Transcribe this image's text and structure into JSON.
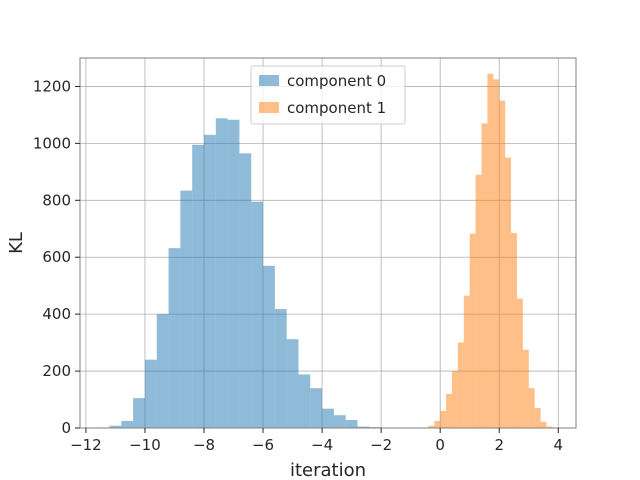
{
  "chart_data": {
    "type": "histogram",
    "xlabel": "iteration",
    "ylabel": "KL",
    "xlim": [
      -12.2,
      4.6
    ],
    "ylim": [
      0,
      1300
    ],
    "xticks": [
      -12,
      -10,
      -8,
      -6,
      -4,
      -2,
      0,
      2,
      4
    ],
    "xtick_labels": [
      "−12",
      "−10",
      "−8",
      "−6",
      "−4",
      "−2",
      "0",
      "2",
      "4"
    ],
    "yticks": [
      0,
      200,
      400,
      600,
      800,
      1000,
      1200
    ],
    "ytick_labels": [
      "0",
      "200",
      "400",
      "600",
      "800",
      "1000",
      "1200"
    ],
    "grid": true,
    "legend_position": "top-center",
    "series": [
      {
        "name": "component 0",
        "color": "#1f77b4",
        "alpha": 0.5,
        "bins": [
          {
            "x0": -11.6,
            "x1": -11.2,
            "count": 2
          },
          {
            "x0": -11.2,
            "x1": -10.8,
            "count": 8
          },
          {
            "x0": -10.8,
            "x1": -10.4,
            "count": 25
          },
          {
            "x0": -10.4,
            "x1": -10.0,
            "count": 105
          },
          {
            "x0": -10.0,
            "x1": -9.6,
            "count": 240
          },
          {
            "x0": -9.6,
            "x1": -9.2,
            "count": 400
          },
          {
            "x0": -9.2,
            "x1": -8.8,
            "count": 632
          },
          {
            "x0": -8.8,
            "x1": -8.4,
            "count": 834
          },
          {
            "x0": -8.4,
            "x1": -8.0,
            "count": 995
          },
          {
            "x0": -8.0,
            "x1": -7.6,
            "count": 1030
          },
          {
            "x0": -7.6,
            "x1": -7.2,
            "count": 1088
          },
          {
            "x0": -7.2,
            "x1": -6.8,
            "count": 1083
          },
          {
            "x0": -6.8,
            "x1": -6.4,
            "count": 965
          },
          {
            "x0": -6.4,
            "x1": -6.0,
            "count": 795
          },
          {
            "x0": -6.0,
            "x1": -5.6,
            "count": 570
          },
          {
            "x0": -5.6,
            "x1": -5.2,
            "count": 418
          },
          {
            "x0": -5.2,
            "x1": -4.8,
            "count": 312
          },
          {
            "x0": -4.8,
            "x1": -4.4,
            "count": 188
          },
          {
            "x0": -4.4,
            "x1": -4.0,
            "count": 140
          },
          {
            "x0": -4.0,
            "x1": -3.6,
            "count": 68
          },
          {
            "x0": -3.6,
            "x1": -3.2,
            "count": 45
          },
          {
            "x0": -3.2,
            "x1": -2.8,
            "count": 28
          },
          {
            "x0": -2.8,
            "x1": -2.4,
            "count": 5
          },
          {
            "x0": -2.4,
            "x1": -2.0,
            "count": 3
          },
          {
            "x0": -2.0,
            "x1": -1.6,
            "count": 1
          }
        ]
      },
      {
        "name": "component 1",
        "color": "#ff7f0e",
        "alpha": 0.5,
        "bins": [
          {
            "x0": -0.4,
            "x1": -0.2,
            "count": 8
          },
          {
            "x0": -0.2,
            "x1": 0.0,
            "count": 25
          },
          {
            "x0": 0.0,
            "x1": 0.2,
            "count": 60
          },
          {
            "x0": 0.2,
            "x1": 0.4,
            "count": 120
          },
          {
            "x0": 0.4,
            "x1": 0.6,
            "count": 200
          },
          {
            "x0": 0.6,
            "x1": 0.8,
            "count": 300
          },
          {
            "x0": 0.8,
            "x1": 1.0,
            "count": 465
          },
          {
            "x0": 1.0,
            "x1": 1.2,
            "count": 683
          },
          {
            "x0": 1.2,
            "x1": 1.4,
            "count": 890
          },
          {
            "x0": 1.4,
            "x1": 1.6,
            "count": 1070
          },
          {
            "x0": 1.6,
            "x1": 1.8,
            "count": 1245
          },
          {
            "x0": 1.8,
            "x1": 2.0,
            "count": 1225
          },
          {
            "x0": 2.0,
            "x1": 2.2,
            "count": 1150
          },
          {
            "x0": 2.2,
            "x1": 2.4,
            "count": 950
          },
          {
            "x0": 2.4,
            "x1": 2.6,
            "count": 685
          },
          {
            "x0": 2.6,
            "x1": 2.8,
            "count": 455
          },
          {
            "x0": 2.8,
            "x1": 3.0,
            "count": 275
          },
          {
            "x0": 3.0,
            "x1": 3.2,
            "count": 140
          },
          {
            "x0": 3.2,
            "x1": 3.4,
            "count": 70
          },
          {
            "x0": 3.4,
            "x1": 3.6,
            "count": 22
          },
          {
            "x0": 3.6,
            "x1": 3.8,
            "count": 5
          }
        ]
      }
    ]
  }
}
